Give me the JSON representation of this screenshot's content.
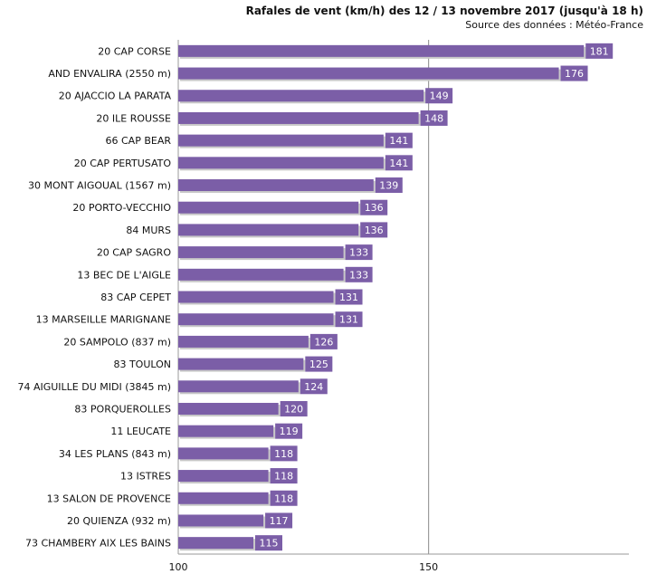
{
  "chart_data": {
    "type": "bar",
    "orientation": "horizontal",
    "title": "Rafales de vent (km/h) des 12 / 13 novembre 2017 (jusqu'à 18 h)",
    "subtitle": "Source des données : Météo-France",
    "categories": [
      "20 CAP CORSE",
      "AND ENVALIRA (2550 m)",
      "20 AJACCIO LA PARATA",
      "20 ILE ROUSSE",
      "66 CAP BEAR",
      "20 CAP PERTUSATO",
      "30 MONT AIGOUAL (1567 m)",
      "20 PORTO-VECCHIO",
      "84 MURS",
      "20 CAP SAGRO",
      "13 BEC DE L'AIGLE",
      "83 CAP CEPET",
      "13 MARSEILLE MARIGNANE",
      "20 SAMPOLO (837 m)",
      "83 TOULON",
      "74 AIGUILLE DU MIDI (3845 m)",
      "83 PORQUEROLLES",
      "11 LEUCATE",
      "34 LES PLANS (843 m)",
      "13 ISTRES",
      "13 SALON DE PROVENCE",
      "20 QUIENZA (932 m)",
      "73 CHAMBERY AIX LES BAINS"
    ],
    "values": [
      181,
      176,
      149,
      148,
      141,
      141,
      139,
      136,
      136,
      133,
      133,
      131,
      131,
      126,
      125,
      124,
      120,
      119,
      118,
      118,
      118,
      117,
      115
    ],
    "xlim": [
      100,
      190
    ],
    "xticks": [
      100,
      150
    ],
    "xlabel": "",
    "ylabel": "",
    "grid": "vertical at 150",
    "colors": {
      "bar": "#7b5ea7",
      "label_box": "#7b5ea7",
      "shadow": "#c8c8c8",
      "axis": "#888888"
    }
  }
}
